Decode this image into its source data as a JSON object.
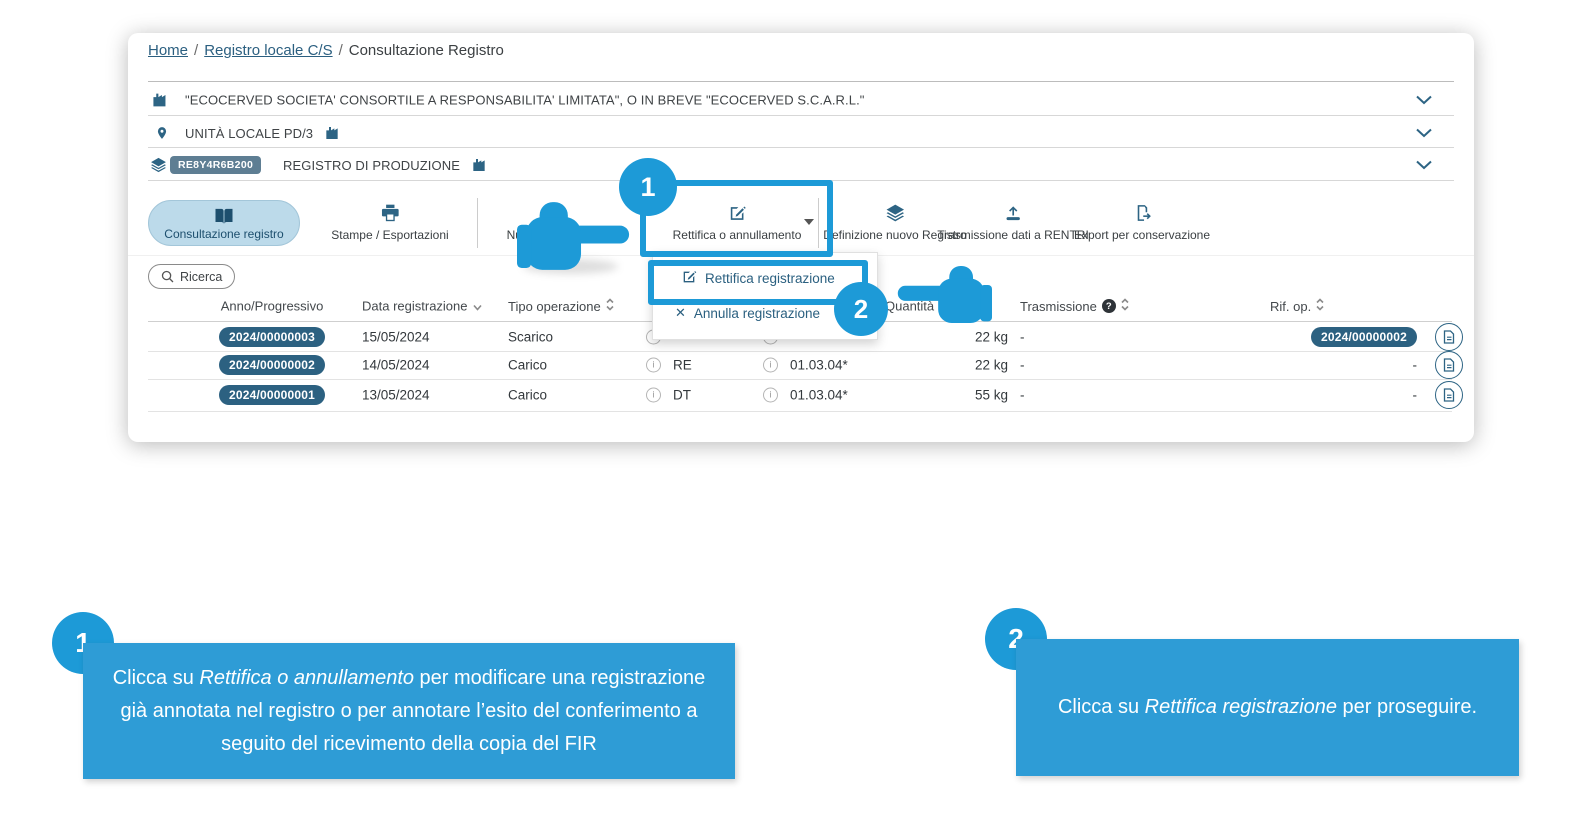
{
  "colors": {
    "accent": "#1d9ad7",
    "callout_bg": "#2e9cd6",
    "slate": "#2d6484",
    "active_pill_bg": "#bcdaea",
    "badge_dark": "#2c6181",
    "badge_gray": "#5e7e93"
  },
  "glyphs": {
    "breadcrumb_sep": "/",
    "close": "✕",
    "help": "?",
    "info": "i"
  },
  "breadcrumb": {
    "home": "Home",
    "section": "Registro locale C/S",
    "current": "Consultazione Registro"
  },
  "context": {
    "company": "\"ECOCERVED SOCIETA' CONSORTILE A RESPONSABILITA' LIMITATA\", O IN BREVE \"ECOCERVED S.C.A.R.L.\"",
    "unit": "UNITÀ LOCALE PD/3",
    "registry_code": "RE8Y4R6B200",
    "registry_name": "REGISTRO DI PRODUZIONE"
  },
  "toolbar": {
    "buttons": [
      {
        "label": "Consultazione registro",
        "active": true
      },
      {
        "label": "Stampe / Esportazioni"
      },
      {
        "label": "Nuova registrazione"
      },
      {
        "label": "Rettifica o annullamento"
      },
      {
        "label": "Definizione nuovo Registro"
      },
      {
        "label": "Trasmissione dati a RENTRI"
      },
      {
        "label": "Export per conservazione"
      }
    ]
  },
  "search": {
    "label": "Ricerca"
  },
  "menu": {
    "items": [
      {
        "label": "Rettifica registrazione"
      },
      {
        "label": "Annulla registrazione"
      }
    ]
  },
  "table": {
    "headers": {
      "anno": "Anno/Progressivo",
      "data": "Data registrazione",
      "tipo": "Tipo operazione",
      "qta": "Quantità",
      "tra": "Trasmissione",
      "rif": "Rif. op."
    },
    "rows": [
      {
        "anno": "2024/00000003",
        "data": "15/05/2024",
        "tipo": "Scarico",
        "causale": "",
        "cer": "",
        "qta": "22 kg",
        "tra": "-",
        "rif": "2024/00000002"
      },
      {
        "anno": "2024/00000002",
        "data": "14/05/2024",
        "tipo": "Carico",
        "causale": "RE",
        "cer": "01.03.04*",
        "qta": "22 kg",
        "tra": "-",
        "rif": "-"
      },
      {
        "anno": "2024/00000001",
        "data": "13/05/2024",
        "tipo": "Carico",
        "causale": "DT",
        "cer": "01.03.04*",
        "qta": "55 kg",
        "tra": "-",
        "rif": "-"
      }
    ]
  },
  "steps": {
    "one": "1",
    "two": "2"
  },
  "callouts": {
    "c1": [
      {
        "t": "Clicca su ",
        "i": false
      },
      {
        "t": "Rettifica o annullamento",
        "i": true
      },
      {
        "t": " per modificare una registrazione già annotata nel registro o per annotare l’esito del conferimento a seguito del ricevimento della copia del FIR",
        "i": false
      }
    ],
    "c2": [
      {
        "t": "Clicca su ",
        "i": false
      },
      {
        "t": "Rettifica registrazione",
        "i": true
      },
      {
        "t": " per proseguire.",
        "i": false
      }
    ]
  }
}
